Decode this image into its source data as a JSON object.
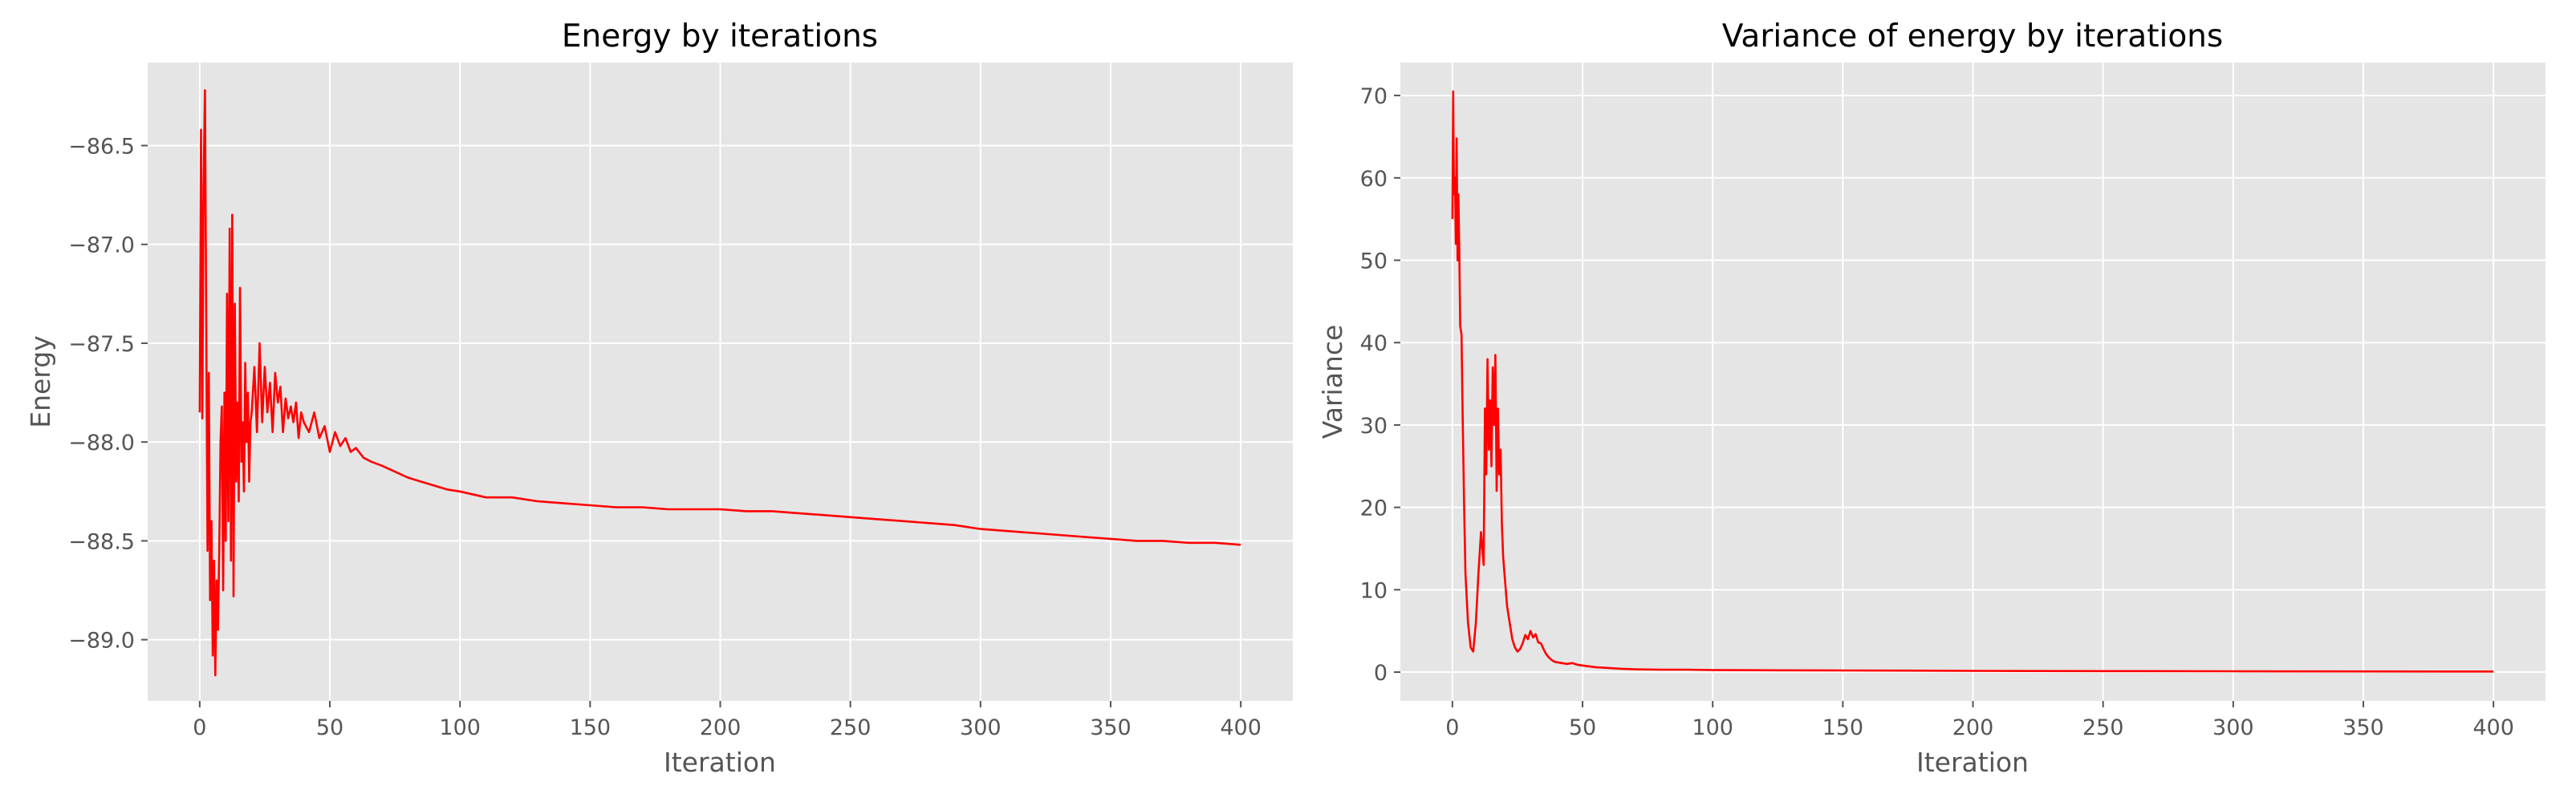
{
  "chart_data": [
    {
      "type": "line",
      "title": "Energy by iterations",
      "xlabel": "Iteration",
      "ylabel": "Energy",
      "xlim": [
        -20,
        420
      ],
      "ylim": [
        -89.31,
        -86.08
      ],
      "xticks": [
        0,
        50,
        100,
        150,
        200,
        250,
        300,
        350,
        400
      ],
      "yticks": [
        -89.0,
        -88.5,
        -88.0,
        -87.5,
        -87.0,
        -86.5
      ],
      "ytick_labels": [
        "−89.0",
        "−88.5",
        "−88.0",
        "−87.5",
        "−87.0",
        "−86.5"
      ],
      "grid": true,
      "line_color": "#ff0000",
      "series": [
        {
          "x": [
            0,
            0.5,
            1,
            1.5,
            2,
            2.5,
            3,
            3.5,
            4,
            4.5,
            5,
            5.5,
            6,
            6.5,
            7,
            7.5,
            8,
            8.5,
            9,
            9.5,
            10,
            10.5,
            11,
            11.5,
            12,
            12.5,
            13,
            13.5,
            14,
            14.5,
            15,
            15.5,
            16,
            16.5,
            17,
            17.5,
            18,
            18.5,
            19,
            19.5,
            20,
            21,
            22,
            23,
            24,
            25,
            26,
            27,
            28,
            29,
            30,
            31,
            32,
            33,
            34,
            35,
            36,
            37,
            38,
            39,
            40,
            42,
            44,
            46,
            48,
            50,
            52,
            54,
            56,
            58,
            60,
            63,
            66,
            70,
            75,
            80,
            85,
            90,
            95,
            100,
            110,
            120,
            130,
            140,
            150,
            160,
            170,
            180,
            190,
            200,
            210,
            220,
            230,
            240,
            250,
            260,
            270,
            280,
            290,
            300,
            310,
            320,
            330,
            340,
            350,
            360,
            370,
            380,
            390,
            400
          ],
          "y": [
            -87.85,
            -86.42,
            -87.88,
            -86.7,
            -86.22,
            -87.4,
            -88.55,
            -87.65,
            -88.8,
            -88.4,
            -89.08,
            -88.6,
            -89.18,
            -88.7,
            -88.95,
            -88.55,
            -88.0,
            -87.82,
            -88.75,
            -87.75,
            -88.5,
            -87.25,
            -88.4,
            -86.92,
            -88.6,
            -86.85,
            -88.78,
            -87.3,
            -88.2,
            -87.8,
            -88.3,
            -87.22,
            -88.1,
            -87.9,
            -88.25,
            -87.6,
            -88.0,
            -87.75,
            -88.2,
            -87.9,
            -87.85,
            -87.62,
            -87.95,
            -87.5,
            -87.9,
            -87.62,
            -87.85,
            -87.7,
            -87.95,
            -87.65,
            -87.8,
            -87.72,
            -87.95,
            -87.78,
            -87.88,
            -87.82,
            -87.9,
            -87.8,
            -87.98,
            -87.85,
            -87.9,
            -87.95,
            -87.85,
            -87.98,
            -87.92,
            -88.05,
            -87.95,
            -88.02,
            -87.98,
            -88.05,
            -88.03,
            -88.08,
            -88.1,
            -88.12,
            -88.15,
            -88.18,
            -88.2,
            -88.22,
            -88.24,
            -88.25,
            -88.28,
            -88.28,
            -88.3,
            -88.31,
            -88.32,
            -88.33,
            -88.33,
            -88.34,
            -88.34,
            -88.34,
            -88.35,
            -88.35,
            -88.36,
            -88.37,
            -88.38,
            -88.39,
            -88.4,
            -88.41,
            -88.42,
            -88.44,
            -88.45,
            -88.46,
            -88.47,
            -88.48,
            -88.49,
            -88.5,
            -88.5,
            -88.51,
            -88.51,
            -88.52
          ]
        }
      ]
    },
    {
      "type": "line",
      "title": "Variance of energy by iterations",
      "xlabel": "Iteration",
      "ylabel": "Variance",
      "xlim": [
        -20,
        420
      ],
      "ylim": [
        -3.5,
        74
      ],
      "xticks": [
        0,
        50,
        100,
        150,
        200,
        250,
        300,
        350,
        400
      ],
      "yticks": [
        0,
        10,
        20,
        30,
        40,
        50,
        60,
        70
      ],
      "ytick_labels": [
        "0",
        "10",
        "20",
        "30",
        "40",
        "50",
        "60",
        "70"
      ],
      "grid": true,
      "line_color": "#ff0000",
      "series": [
        {
          "x": [
            0,
            0.3,
            0.6,
            1,
            1.3,
            1.6,
            2,
            2.3,
            2.6,
            3,
            3.5,
            4,
            4.5,
            5,
            6,
            7,
            8,
            9,
            10,
            11,
            12,
            12.5,
            13,
            13.5,
            14,
            14.5,
            15,
            15.5,
            16,
            16.5,
            17,
            17.5,
            18,
            18.5,
            19,
            19.5,
            20,
            21,
            22,
            23,
            24,
            25,
            26,
            27,
            28,
            29,
            30,
            31,
            32,
            33,
            34,
            35,
            36,
            37,
            38,
            39,
            40,
            42,
            44,
            46,
            48,
            50,
            55,
            60,
            65,
            70,
            80,
            90,
            100,
            125,
            150,
            175,
            200,
            250,
            300,
            350,
            400
          ],
          "y": [
            55.0,
            70.5,
            58.0,
            60.0,
            52.0,
            64.8,
            50.0,
            58.0,
            52.0,
            42.0,
            41.0,
            30.0,
            20.0,
            12.0,
            6.0,
            3.0,
            2.5,
            6.0,
            12.0,
            17.0,
            13.0,
            32.0,
            24.0,
            38.0,
            27.0,
            33.0,
            25.0,
            37.0,
            30.0,
            38.5,
            22.0,
            32.0,
            24.0,
            27.0,
            18.0,
            14.0,
            12.0,
            8.0,
            6.0,
            4.0,
            3.0,
            2.5,
            2.8,
            3.5,
            4.5,
            4.0,
            5.0,
            4.2,
            4.6,
            3.6,
            3.5,
            2.8,
            2.2,
            1.8,
            1.5,
            1.3,
            1.2,
            1.1,
            1.0,
            1.1,
            0.9,
            0.8,
            0.6,
            0.5,
            0.4,
            0.35,
            0.3,
            0.3,
            0.25,
            0.22,
            0.2,
            0.18,
            0.15,
            0.12,
            0.1,
            0.08,
            0.07
          ]
        }
      ]
    }
  ]
}
